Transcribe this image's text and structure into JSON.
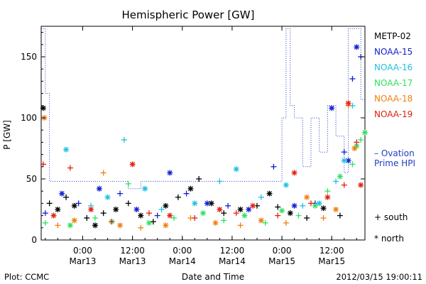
{
  "chart_data": {
    "type": "scatter",
    "title": "Hemispheric Power [GW]",
    "xlabel": "Date and Time",
    "ylabel": "P [GW]",
    "xlim": [
      "2012-03-12 14:00",
      "2012-03-15 20:00"
    ],
    "ylim": [
      0,
      175
    ],
    "y_ticks": [
      0,
      50,
      100,
      150
    ],
    "x_ticks": [
      {
        "t": "2012-03-13 00:00",
        "line1": "0:00",
        "line2": "Mar13"
      },
      {
        "t": "2012-03-13 12:00",
        "line1": "12:00",
        "line2": "Mar13"
      },
      {
        "t": "2012-03-14 00:00",
        "line1": "0:00",
        "line2": "Mar14"
      },
      {
        "t": "2012-03-14 12:00",
        "line1": "12:00",
        "line2": "Mar14"
      },
      {
        "t": "2012-03-15 00:00",
        "line1": "0:00",
        "line2": "Mar15"
      },
      {
        "t": "2012-03-15 12:00",
        "line1": "12:00",
        "line2": "Mar15"
      }
    ],
    "series": [
      {
        "name": "METP-02",
        "color": "#000000",
        "marker": "mixed",
        "points": [
          [
            "2012-03-12 14:30",
            108
          ],
          [
            "2012-03-12 16:00",
            30
          ],
          [
            "2012-03-12 18:00",
            25
          ],
          [
            "2012-03-12 20:00",
            35
          ],
          [
            "2012-03-12 22:00",
            28
          ],
          [
            "2012-03-13 01:00",
            18
          ],
          [
            "2012-03-13 03:00",
            12
          ],
          [
            "2012-03-13 05:00",
            22
          ],
          [
            "2012-03-13 08:00",
            25
          ],
          [
            "2012-03-13 11:00",
            30
          ],
          [
            "2012-03-13 14:00",
            20
          ],
          [
            "2012-03-13 17:00",
            15
          ],
          [
            "2012-03-13 20:00",
            28
          ],
          [
            "2012-03-13 23:00",
            35
          ],
          [
            "2012-03-14 02:00",
            42
          ],
          [
            "2012-03-14 04:00",
            50
          ],
          [
            "2012-03-14 07:00",
            30
          ],
          [
            "2012-03-14 10:00",
            22
          ],
          [
            "2012-03-14 14:00",
            25
          ],
          [
            "2012-03-14 18:00",
            28
          ],
          [
            "2012-03-14 21:00",
            38
          ],
          [
            "2012-03-14 23:00",
            27
          ],
          [
            "2012-03-15 02:00",
            22
          ],
          [
            "2012-03-15 06:00",
            18
          ],
          [
            "2012-03-15 10:00",
            26
          ],
          [
            "2012-03-15 14:00",
            20
          ]
        ]
      },
      {
        "name": "NOAA-15",
        "color": "#1020d0",
        "marker": "mixed",
        "points": [
          [
            "2012-03-12 15:00",
            22
          ],
          [
            "2012-03-12 19:00",
            38
          ],
          [
            "2012-03-12 23:00",
            30
          ],
          [
            "2012-03-13 04:00",
            42
          ],
          [
            "2012-03-13 09:00",
            38
          ],
          [
            "2012-03-13 13:00",
            25
          ],
          [
            "2012-03-13 18:00",
            20
          ],
          [
            "2012-03-13 21:00",
            55
          ],
          [
            "2012-03-14 01:00",
            38
          ],
          [
            "2012-03-14 06:00",
            30
          ],
          [
            "2012-03-14 11:00",
            28
          ],
          [
            "2012-03-14 16:00",
            25
          ],
          [
            "2012-03-14 22:00",
            60
          ],
          [
            "2012-03-15 03:00",
            28
          ],
          [
            "2012-03-15 08:00",
            30
          ],
          [
            "2012-03-15 12:00",
            108
          ],
          [
            "2012-03-15 15:00",
            72
          ],
          [
            "2012-03-15 16:00",
            65
          ],
          [
            "2012-03-15 17:00",
            132
          ],
          [
            "2012-03-15 18:00",
            158
          ],
          [
            "2012-03-15 19:00",
            150
          ]
        ]
      },
      {
        "name": "NOAA-16",
        "color": "#20c0e0",
        "marker": "mixed",
        "points": [
          [
            "2012-03-12 20:00",
            74
          ],
          [
            "2012-03-13 02:00",
            28
          ],
          [
            "2012-03-13 06:00",
            35
          ],
          [
            "2012-03-13 10:00",
            82
          ],
          [
            "2012-03-13 15:00",
            42
          ],
          [
            "2012-03-13 19:00",
            25
          ],
          [
            "2012-03-14 03:00",
            30
          ],
          [
            "2012-03-14 09:00",
            48
          ],
          [
            "2012-03-14 13:00",
            58
          ],
          [
            "2012-03-14 19:00",
            35
          ],
          [
            "2012-03-15 01:00",
            45
          ],
          [
            "2012-03-15 05:00",
            28
          ],
          [
            "2012-03-15 09:00",
            30
          ],
          [
            "2012-03-15 13:00",
            48
          ],
          [
            "2012-03-15 15:00",
            65
          ],
          [
            "2012-03-15 17:00",
            110
          ]
        ]
      },
      {
        "name": "NOAA-17",
        "color": "#30e060",
        "marker": "mixed",
        "points": [
          [
            "2012-03-12 15:00",
            14
          ],
          [
            "2012-03-12 21:00",
            12
          ],
          [
            "2012-03-13 03:00",
            18
          ],
          [
            "2012-03-13 07:00",
            15
          ],
          [
            "2012-03-13 11:00",
            46
          ],
          [
            "2012-03-13 16:00",
            14
          ],
          [
            "2012-03-13 22:00",
            18
          ],
          [
            "2012-03-14 05:00",
            22
          ],
          [
            "2012-03-14 10:00",
            16
          ],
          [
            "2012-03-14 15:00",
            20
          ],
          [
            "2012-03-14 20:00",
            14
          ],
          [
            "2012-03-15 00:00",
            24
          ],
          [
            "2012-03-15 04:00",
            20
          ],
          [
            "2012-03-15 08:00",
            28
          ],
          [
            "2012-03-15 11:00",
            40
          ],
          [
            "2012-03-15 14:00",
            52
          ],
          [
            "2012-03-15 17:00",
            62
          ],
          [
            "2012-03-15 18:00",
            77
          ],
          [
            "2012-03-15 19:00",
            82
          ],
          [
            "2012-03-15 20:00",
            88
          ]
        ]
      },
      {
        "name": "NOAA-18",
        "color": "#f08010",
        "marker": "mixed",
        "points": [
          [
            "2012-03-12 14:45",
            100
          ],
          [
            "2012-03-12 18:00",
            12
          ],
          [
            "2012-03-12 22:00",
            16
          ],
          [
            "2012-03-13 05:00",
            55
          ],
          [
            "2012-03-13 09:00",
            12
          ],
          [
            "2012-03-13 14:00",
            10
          ],
          [
            "2012-03-13 20:00",
            12
          ],
          [
            "2012-03-14 02:00",
            18
          ],
          [
            "2012-03-14 08:00",
            14
          ],
          [
            "2012-03-14 14:00",
            12
          ],
          [
            "2012-03-14 19:00",
            16
          ],
          [
            "2012-03-15 01:00",
            14
          ],
          [
            "2012-03-15 06:00",
            35
          ],
          [
            "2012-03-15 10:00",
            18
          ],
          [
            "2012-03-15 13:00",
            25
          ],
          [
            "2012-03-15 16:00",
            110
          ],
          [
            "2012-03-15 17:30",
            75
          ]
        ]
      },
      {
        "name": "NOAA-19",
        "color": "#e02010",
        "marker": "mixed",
        "points": [
          [
            "2012-03-12 14:30",
            62
          ],
          [
            "2012-03-12 17:00",
            20
          ],
          [
            "2012-03-12 21:00",
            59
          ],
          [
            "2012-03-13 02:00",
            25
          ],
          [
            "2012-03-13 07:00",
            15
          ],
          [
            "2012-03-13 12:00",
            62
          ],
          [
            "2012-03-13 16:00",
            22
          ],
          [
            "2012-03-13 21:00",
            20
          ],
          [
            "2012-03-14 03:00",
            18
          ],
          [
            "2012-03-14 09:00",
            25
          ],
          [
            "2012-03-14 13:00",
            22
          ],
          [
            "2012-03-14 17:00",
            28
          ],
          [
            "2012-03-14 23:00",
            20
          ],
          [
            "2012-03-15 03:00",
            55
          ],
          [
            "2012-03-15 07:00",
            30
          ],
          [
            "2012-03-15 11:00",
            35
          ],
          [
            "2012-03-15 15:00",
            45
          ],
          [
            "2012-03-15 16:00",
            112
          ],
          [
            "2012-03-15 18:00",
            80
          ],
          [
            "2012-03-15 19:00",
            45
          ]
        ]
      }
    ],
    "ovation": {
      "name": "– Ovation Prime HPI",
      "color": "#2040c0",
      "style": "dotted-step",
      "points": [
        [
          "2012-03-12 14:00",
          173
        ],
        [
          "2012-03-12 15:00",
          173
        ],
        [
          "2012-03-12 15:00",
          120
        ],
        [
          "2012-03-12 16:00",
          120
        ],
        [
          "2012-03-12 16:00",
          48
        ],
        [
          "2012-03-13 11:00",
          48
        ],
        [
          "2012-03-13 11:00",
          42
        ],
        [
          "2012-03-13 14:00",
          42
        ],
        [
          "2012-03-13 14:00",
          48
        ],
        [
          "2012-03-14 22:00",
          48
        ],
        [
          "2012-03-14 22:00",
          48
        ],
        [
          "2012-03-15 00:00",
          48
        ],
        [
          "2012-03-15 00:00",
          100
        ],
        [
          "2012-03-15 01:00",
          100
        ],
        [
          "2012-03-15 01:00",
          173
        ],
        [
          "2012-03-15 02:00",
          173
        ],
        [
          "2012-03-15 02:00",
          110
        ],
        [
          "2012-03-15 03:00",
          110
        ],
        [
          "2012-03-15 03:00",
          100
        ],
        [
          "2012-03-15 05:00",
          100
        ],
        [
          "2012-03-15 05:00",
          60
        ],
        [
          "2012-03-15 07:00",
          60
        ],
        [
          "2012-03-15 07:00",
          100
        ],
        [
          "2012-03-15 09:00",
          100
        ],
        [
          "2012-03-15 09:00",
          72
        ],
        [
          "2012-03-15 11:00",
          72
        ],
        [
          "2012-03-15 11:00",
          110
        ],
        [
          "2012-03-15 13:00",
          110
        ],
        [
          "2012-03-15 13:00",
          85
        ],
        [
          "2012-03-15 15:00",
          85
        ],
        [
          "2012-03-15 15:00",
          55
        ],
        [
          "2012-03-15 16:00",
          55
        ],
        [
          "2012-03-15 16:00",
          173
        ],
        [
          "2012-03-15 19:00",
          173
        ],
        [
          "2012-03-15 19:00",
          115
        ],
        [
          "2012-03-15 20:00",
          115
        ]
      ]
    },
    "marker_legend": [
      {
        "symbol": "+",
        "label": "south"
      },
      {
        "symbol": "*",
        "label": "north"
      }
    ],
    "grid": false,
    "legend_position": "right"
  },
  "footer": {
    "left": "Plot: CCMC",
    "right": "2012/03/15 19:00:11"
  }
}
